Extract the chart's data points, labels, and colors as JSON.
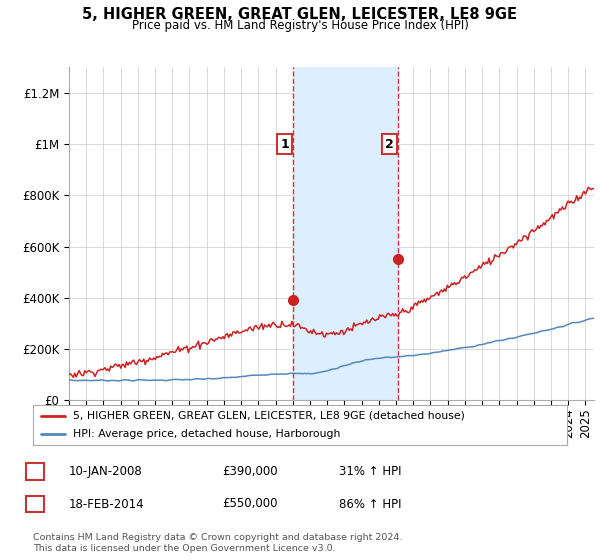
{
  "title": "5, HIGHER GREEN, GREAT GLEN, LEICESTER, LE8 9GE",
  "subtitle": "Price paid vs. HM Land Registry's House Price Index (HPI)",
  "ylabel_ticks": [
    "£0",
    "£200K",
    "£400K",
    "£600K",
    "£800K",
    "£1M",
    "£1.2M"
  ],
  "ytick_values": [
    0,
    200000,
    400000,
    600000,
    800000,
    1000000,
    1200000
  ],
  "ylim": [
    0,
    1300000
  ],
  "xlim_start": 1995.0,
  "xlim_end": 2025.5,
  "hpi_color": "#5588bb",
  "price_color": "#cc2222",
  "marker1_date": 2008.04,
  "marker1_price": 390000,
  "marker1_label": "1",
  "marker2_date": 2014.12,
  "marker2_price": 550000,
  "marker2_label": "2",
  "shade_xstart": 2008.04,
  "shade_xend": 2014.12,
  "shade_color": "#ddeeff",
  "legend_line1": "5, HIGHER GREEN, GREAT GLEN, LEICESTER, LE8 9GE (detached house)",
  "legend_line2": "HPI: Average price, detached house, Harborough",
  "table_row1": [
    "1",
    "10-JAN-2008",
    "£390,000",
    "31% ↑ HPI"
  ],
  "table_row2": [
    "2",
    "18-FEB-2014",
    "£550,000",
    "86% ↑ HPI"
  ],
  "footnote": "Contains HM Land Registry data © Crown copyright and database right 2024.\nThis data is licensed under the Open Government Licence v3.0.",
  "background_color": "#ffffff",
  "plot_bg_color": "#ffffff",
  "grid_color": "#cccccc"
}
